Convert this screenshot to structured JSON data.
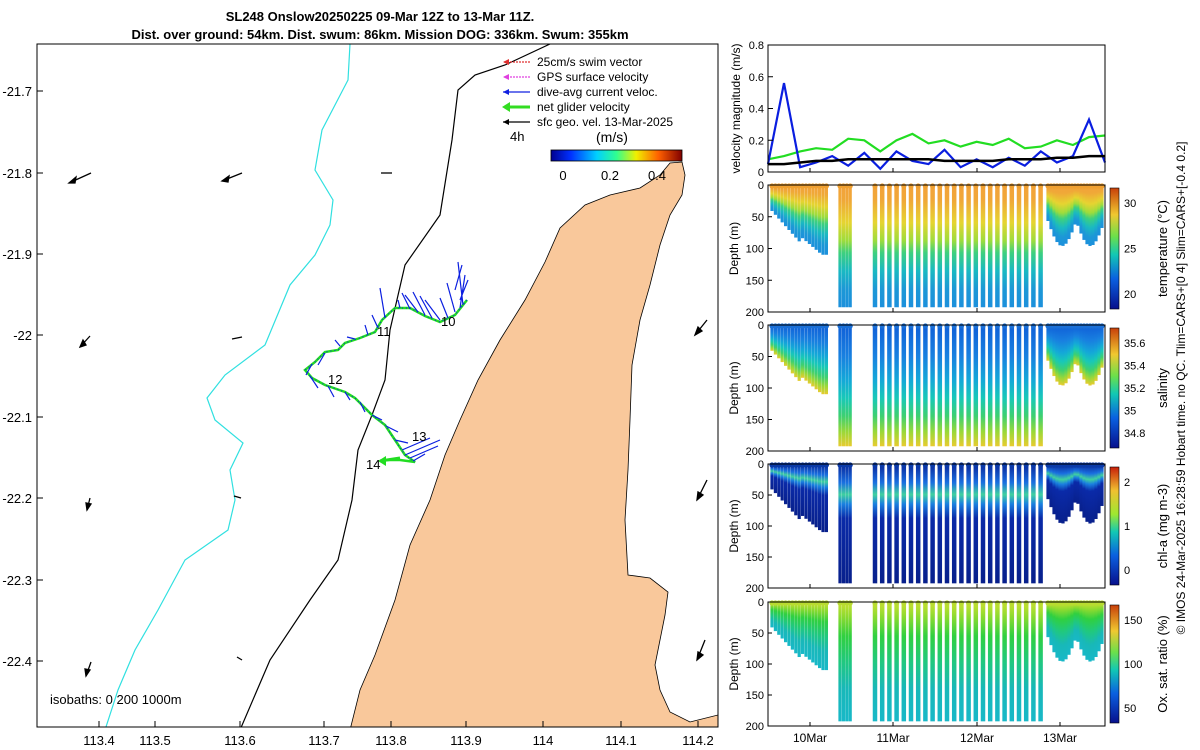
{
  "title": {
    "line1": "SL248 Onslow20250225 09-Mar 12Z to 13-Mar 11Z.",
    "line2": "Dist. over ground: 54km. Dist. swum: 86km. Mission DOG: 336km. Swum: 355km"
  },
  "map": {
    "x_ticks": [
      "113.4",
      "113.5",
      "113.6",
      "113.7",
      "113.8",
      "113.9",
      "114",
      "114.1",
      "114.2"
    ],
    "y_ticks": [
      "-21.7",
      "-21.8",
      "-21.9",
      "-22",
      "-22.1",
      "-22.2",
      "-22.3",
      "-22.4"
    ],
    "legend": [
      {
        "label": "25cm/s swim vector",
        "color": "#e03030"
      },
      {
        "label": "GPS surface velocity",
        "color": "#e040e0"
      },
      {
        "label": "dive-avg current veloc.",
        "color": "#1020e0"
      },
      {
        "label": "net glider velocity",
        "color": "#33dd22"
      },
      {
        "label": "sfc geo. vel. 13-Mar-2025",
        "color": "#000000"
      }
    ],
    "legend_time": "4h",
    "colorbar": {
      "unit": "(m/s)",
      "ticks": [
        "0",
        "0.2",
        "0.4"
      ]
    },
    "day_labels": [
      "10",
      "11",
      "12",
      "13",
      "14"
    ],
    "isobaths_label": "isobaths: 0   200  1000m"
  },
  "chart_data": [
    {
      "type": "line",
      "title": "",
      "ylabel": "velocity magnitude (m/s)",
      "ylim": [
        0,
        0.8
      ],
      "yticks": [
        "0",
        "0.2",
        "0.4",
        "0.6",
        "0.8"
      ],
      "x": [
        0,
        0.2,
        0.4,
        0.6,
        0.8,
        1,
        1.2,
        1.4,
        1.6,
        1.8,
        2,
        2.2,
        2.4,
        2.6,
        2.8,
        3,
        3.2,
        3.4,
        3.6,
        3.8,
        4,
        4.2
      ],
      "series": [
        {
          "name": "net glider velocity",
          "color": "#22dd22",
          "values": [
            0.08,
            0.1,
            0.13,
            0.15,
            0.14,
            0.21,
            0.2,
            0.13,
            0.2,
            0.24,
            0.18,
            0.2,
            0.16,
            0.19,
            0.17,
            0.21,
            0.15,
            0.16,
            0.2,
            0.17,
            0.22,
            0.23
          ]
        },
        {
          "name": "dive-avg current veloc.",
          "color": "#0a1ee0",
          "values": [
            0.05,
            0.56,
            0.03,
            0.06,
            0.1,
            0.04,
            0.12,
            0.02,
            0.13,
            0.07,
            0.05,
            0.14,
            0.03,
            0.08,
            0.03,
            0.09,
            0.04,
            0.13,
            0.06,
            0.1,
            0.33,
            0.06
          ]
        },
        {
          "name": "sfc geo. vel.",
          "color": "#000000",
          "values": [
            0.05,
            0.05,
            0.06,
            0.07,
            0.07,
            0.08,
            0.08,
            0.08,
            0.08,
            0.08,
            0.08,
            0.07,
            0.07,
            0.07,
            0.07,
            0.08,
            0.08,
            0.08,
            0.09,
            0.09,
            0.1,
            0.1
          ]
        }
      ]
    },
    {
      "type": "heatmap",
      "ylabel": "Depth (m)",
      "cbar_label": "temperature (°C)",
      "cbar_ticks": [
        "30",
        "25",
        "20"
      ],
      "ylim": [
        200,
        0
      ],
      "yticks": [
        "0",
        "50",
        "100",
        "150",
        "200"
      ]
    },
    {
      "type": "heatmap",
      "ylabel": "Depth (m)",
      "cbar_label": "salinity",
      "cbar_ticks": [
        "35.6",
        "35.4",
        "35.2",
        "35",
        "34.8"
      ],
      "ylim": [
        200,
        0
      ],
      "yticks": [
        "0",
        "50",
        "100",
        "150",
        "200"
      ]
    },
    {
      "type": "heatmap",
      "ylabel": "Depth (m)",
      "cbar_label": "chl-a (mg m-3)",
      "cbar_ticks": [
        "2",
        "1",
        "0"
      ],
      "ylim": [
        200,
        0
      ],
      "yticks": [
        "0",
        "50",
        "100",
        "150",
        "200"
      ]
    },
    {
      "type": "heatmap",
      "ylabel": "Depth (m)",
      "cbar_label": "Ox. sat. ratio (%)",
      "cbar_ticks": [
        "150",
        "100",
        "50"
      ],
      "ylim": [
        200,
        0
      ],
      "yticks": [
        "0",
        "50",
        "100",
        "150",
        "200"
      ]
    }
  ],
  "time_axis": [
    "10Mar",
    "11Mar",
    "12Mar",
    "13Mar"
  ],
  "footer": "© IMOS 24-Mar-2025 16:28:59 Hobart time. no QC. Tlim=CARS+[0 4] Slim=CARS+[-0.4 0.2]"
}
